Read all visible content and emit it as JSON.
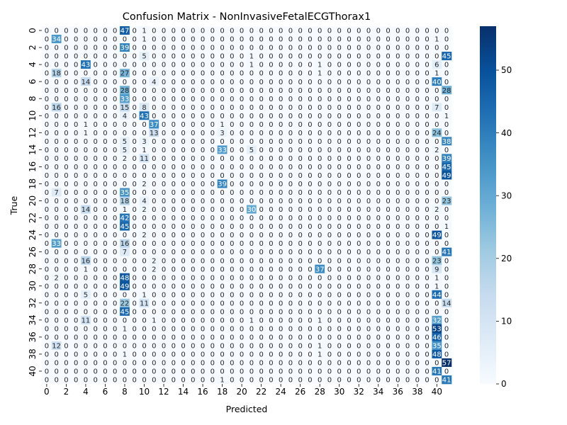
{
  "chart_data": {
    "type": "heatmap",
    "title": "Confusion Matrix - NonInvasiveFetalECGThorax1",
    "xlabel": "Predicted",
    "ylabel": "True",
    "n_classes": 42,
    "x_tick_labels": [
      "0",
      "2",
      "4",
      "6",
      "8",
      "10",
      "12",
      "14",
      "16",
      "18",
      "20",
      "22",
      "24",
      "26",
      "28",
      "30",
      "32",
      "34",
      "36",
      "38",
      "40"
    ],
    "y_tick_labels": [
      "0",
      "2",
      "4",
      "6",
      "8",
      "10",
      "12",
      "14",
      "16",
      "18",
      "20",
      "22",
      "24",
      "26",
      "28",
      "30",
      "32",
      "34",
      "36",
      "38",
      "40"
    ],
    "colorbar": {
      "min": 0,
      "max": 57,
      "ticks": [
        0,
        10,
        20,
        30,
        40,
        50
      ],
      "colormap": "Blues"
    },
    "rows": [
      [
        [
          8,
          47
        ],
        [
          10,
          1
        ]
      ],
      [
        [
          1,
          34
        ],
        [
          10,
          1
        ],
        [
          40,
          1
        ]
      ],
      [
        [
          8,
          39
        ]
      ],
      [
        [
          10,
          5
        ],
        [
          21,
          1
        ],
        [
          41,
          45
        ]
      ],
      [
        [
          4,
          43
        ],
        [
          21,
          1
        ],
        [
          28,
          1
        ],
        [
          40,
          6
        ]
      ],
      [
        [
          1,
          18
        ],
        [
          8,
          27
        ],
        [
          28,
          1
        ],
        [
          40,
          1
        ]
      ],
      [
        [
          4,
          14
        ],
        [
          11,
          4
        ],
        [
          40,
          40
        ]
      ],
      [
        [
          8,
          28
        ],
        [
          41,
          28
        ]
      ],
      [
        [
          8,
          33
        ]
      ],
      [
        [
          1,
          16
        ],
        [
          8,
          15
        ],
        [
          10,
          8
        ],
        [
          40,
          7
        ]
      ],
      [
        [
          8,
          4
        ],
        [
          10,
          43
        ],
        [
          41,
          1
        ]
      ],
      [
        [
          4,
          1
        ],
        [
          11,
          37
        ],
        [
          18,
          1
        ]
      ],
      [
        [
          4,
          1
        ],
        [
          11,
          13
        ],
        [
          18,
          3
        ],
        [
          40,
          24
        ]
      ],
      [
        [
          8,
          5
        ],
        [
          10,
          3
        ],
        [
          41,
          38
        ]
      ],
      [
        [
          8,
          5
        ],
        [
          10,
          1
        ],
        [
          18,
          33
        ],
        [
          21,
          5
        ],
        [
          40,
          2
        ]
      ],
      [
        [
          8,
          2
        ],
        [
          10,
          11
        ],
        [
          41,
          39
        ]
      ],
      [
        [
          41,
          45
        ]
      ],
      [
        [
          41,
          49
        ]
      ],
      [
        [
          10,
          2
        ],
        [
          18,
          39
        ]
      ],
      [
        [
          1,
          7
        ],
        [
          8,
          35
        ]
      ],
      [
        [
          8,
          18
        ],
        [
          10,
          4
        ],
        [
          41,
          23
        ]
      ],
      [
        [
          4,
          14
        ],
        [
          8,
          1
        ],
        [
          10,
          2
        ],
        [
          21,
          30
        ],
        [
          40,
          2
        ]
      ],
      [
        [
          8,
          42
        ]
      ],
      [
        [
          8,
          45
        ],
        [
          41,
          1
        ]
      ],
      [
        [
          10,
          2
        ],
        [
          40,
          49
        ]
      ],
      [
        [
          1,
          33
        ],
        [
          8,
          16
        ]
      ],
      [
        [
          8,
          7
        ],
        [
          41,
          41
        ]
      ],
      [
        [
          4,
          16
        ],
        [
          11,
          2
        ],
        [
          40,
          23
        ]
      ],
      [
        [
          4,
          1
        ],
        [
          11,
          2
        ],
        [
          28,
          37
        ],
        [
          40,
          9
        ]
      ],
      [
        [
          1,
          2
        ],
        [
          8,
          48
        ],
        [
          40,
          1
        ]
      ],
      [
        [
          8,
          49
        ],
        [
          40,
          1
        ]
      ],
      [
        [
          4,
          5
        ],
        [
          10,
          1
        ],
        [
          40,
          44
        ]
      ],
      [
        [
          8,
          22
        ],
        [
          10,
          11
        ],
        [
          41,
          14
        ]
      ],
      [
        [
          8,
          45
        ]
      ],
      [
        [
          4,
          11
        ],
        [
          11,
          1
        ],
        [
          21,
          1
        ],
        [
          28,
          1
        ],
        [
          40,
          32
        ]
      ],
      [
        [
          8,
          1
        ],
        [
          40,
          53
        ]
      ],
      [
        [
          40,
          46
        ]
      ],
      [
        [
          1,
          12
        ],
        [
          28,
          1
        ],
        [
          40,
          35
        ]
      ],
      [
        [
          8,
          1
        ],
        [
          28,
          1
        ],
        [
          40,
          48
        ]
      ],
      [
        [
          41,
          57
        ]
      ],
      [
        [
          40,
          41
        ]
      ],
      [
        [
          18,
          1
        ],
        [
          41,
          41
        ]
      ]
    ]
  }
}
